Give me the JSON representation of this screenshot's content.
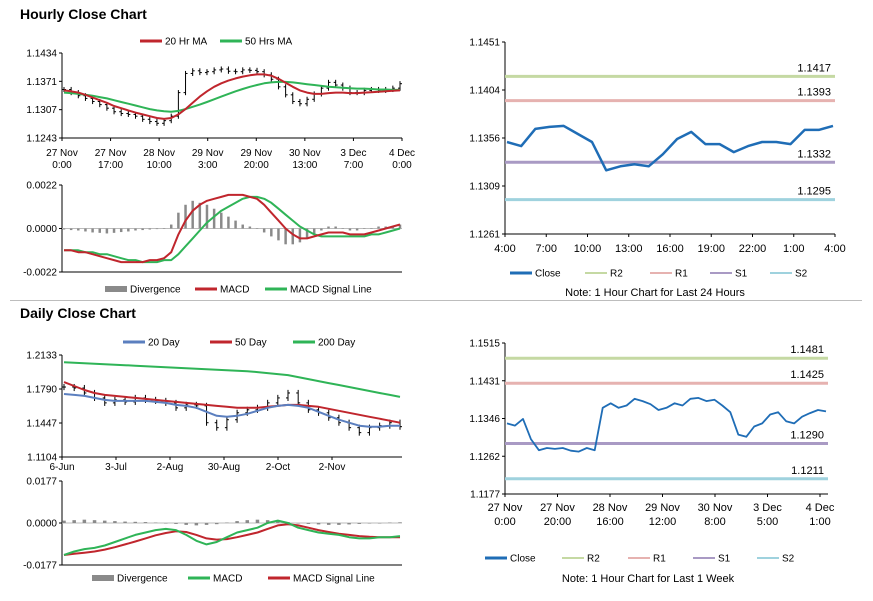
{
  "colors": {
    "ma20": "#c0262d",
    "ma50": "#2fb457",
    "ma200": "#2fb457",
    "ma20_daily": "#5b7fbf",
    "ma50_daily": "#c0262d",
    "close": "#1f6db6",
    "r2": "#c5d9a3",
    "r1": "#e6b2b0",
    "s1": "#a99ac4",
    "s2": "#9fd2de",
    "divergence": "#8a8a8a",
    "macd_hourly": "#c0262d",
    "signal_hourly": "#2fb457",
    "macd_daily": "#2fb457",
    "signal_daily": "#c0262d"
  },
  "hourly": {
    "title": "Hourly Close Chart",
    "price_chart": {
      "legend": [
        "20 Hr MA",
        "50 Hrs MA"
      ],
      "y_ticks": [
        "1.1434",
        "1.1371",
        "1.1307",
        "1.1243"
      ],
      "x_ticks": [
        [
          "27 Nov",
          "0:00"
        ],
        [
          "27 Nov",
          "17:00"
        ],
        [
          "28 Nov",
          "10:00"
        ],
        [
          "29 Nov",
          "3:00"
        ],
        [
          "29 Nov",
          "20:00"
        ],
        [
          "30 Nov",
          "13:00"
        ],
        [
          "3 Dec",
          "7:00"
        ],
        [
          "4 Dec",
          "0:00"
        ]
      ]
    },
    "macd_chart": {
      "y_ticks": [
        "0.0022",
        "0.0000",
        "-0.0022"
      ],
      "legend": [
        "Divergence",
        "MACD",
        "MACD Signal Line"
      ]
    },
    "pivot_chart": {
      "y_ticks": [
        "1.1451",
        "1.1404",
        "1.1356",
        "1.1309",
        "1.1261"
      ],
      "x_ticks": [
        "4:00",
        "7:00",
        "10:00",
        "13:00",
        "16:00",
        "19:00",
        "22:00",
        "1:00",
        "4:00"
      ],
      "legend": [
        "Close",
        "R2",
        "R1",
        "S1",
        "S2"
      ],
      "note": "Note: 1 Hour Chart for Last 24 Hours"
    }
  },
  "daily": {
    "title": "Daily Close Chart",
    "price_chart": {
      "legend": [
        "20 Day",
        "50 Day",
        "200 Day"
      ],
      "y_ticks": [
        "1.2133",
        "1.1790",
        "1.1447",
        "1.1104"
      ],
      "x_ticks": [
        "6-Jun",
        "3-Jul",
        "2-Aug",
        "30-Aug",
        "2-Oct",
        "2-Nov"
      ]
    },
    "macd_chart": {
      "y_ticks": [
        "0.0177",
        "0.0000",
        "-0.0177"
      ],
      "legend": [
        "Divergence",
        "MACD",
        "MACD Signal Line"
      ]
    },
    "pivot_chart": {
      "y_ticks": [
        "1.1515",
        "1.1431",
        "1.1346",
        "1.1262",
        "1.1177"
      ],
      "x_ticks": [
        [
          "27 Nov",
          "0:00"
        ],
        [
          "27 Nov",
          "20:00"
        ],
        [
          "28 Nov",
          "16:00"
        ],
        [
          "29 Nov",
          "12:00"
        ],
        [
          "30 Nov",
          "8:00"
        ],
        [
          "3 Dec",
          "5:00"
        ],
        [
          "4 Dec",
          "1:00"
        ]
      ],
      "legend": [
        "Close",
        "R2",
        "R1",
        "S1",
        "S2"
      ],
      "note": "Note: 1 Hour Chart for Last 1 Week"
    }
  },
  "chart_data": [
    {
      "id": "hourly-price",
      "type": "line",
      "title": "Hourly Close Chart",
      "ylim": [
        1.1243,
        1.1434
      ],
      "series": [
        {
          "name": "Close",
          "type": "ohlc",
          "values": [
            1.1352,
            1.1345,
            1.1338,
            1.1332,
            1.1325,
            1.1318,
            1.131,
            1.1302,
            1.1298,
            1.1296,
            1.1292,
            1.1285,
            1.128,
            1.1276,
            1.1282,
            1.1292,
            1.1345,
            1.1388,
            1.1394,
            1.139,
            1.1392,
            1.1396,
            1.1398,
            1.1393,
            1.1392,
            1.1396,
            1.1395,
            1.1392,
            1.1385,
            1.1375,
            1.1358,
            1.134,
            1.1325,
            1.132,
            1.133,
            1.1342,
            1.1355,
            1.1368,
            1.1362,
            1.1355,
            1.1345,
            1.1345,
            1.135,
            1.1352,
            1.135,
            1.1352,
            1.1355,
            1.1365
          ]
        },
        {
          "name": "20 Hr MA",
          "values": [
            1.135,
            1.1348,
            1.1345,
            1.134,
            1.1334,
            1.1328,
            1.1322,
            1.1315,
            1.131,
            1.1305,
            1.13,
            1.1296,
            1.1292,
            1.1288,
            1.1286,
            1.1288,
            1.1296,
            1.1308,
            1.1322,
            1.1336,
            1.1348,
            1.1358,
            1.1366,
            1.1372,
            1.1377,
            1.1381,
            1.1384,
            1.1386,
            1.1386,
            1.1383,
            1.1376,
            1.1367,
            1.1358,
            1.135,
            1.1345,
            1.1342,
            1.1342,
            1.1344,
            1.1345,
            1.1345,
            1.1344,
            1.1344,
            1.1345,
            1.1346,
            1.1347,
            1.1348,
            1.1349,
            1.135
          ]
        },
        {
          "name": "50 Hrs MA",
          "values": [
            1.1345,
            1.1344,
            1.1342,
            1.134,
            1.1338,
            1.1335,
            1.1332,
            1.1328,
            1.1324,
            1.132,
            1.1316,
            1.1312,
            1.1308,
            1.1305,
            1.1303,
            1.1302,
            1.1304,
            1.1308,
            1.1313,
            1.1318,
            1.1324,
            1.133,
            1.1336,
            1.1342,
            1.1348,
            1.1353,
            1.1358,
            1.1362,
            1.1366,
            1.1368,
            1.1369,
            1.1369,
            1.1368,
            1.1366,
            1.1364,
            1.1362,
            1.136,
            1.1358,
            1.1357,
            1.1356,
            1.1355,
            1.1354,
            1.1354,
            1.1353,
            1.1352,
            1.1352,
            1.1351,
            1.1351
          ]
        }
      ]
    },
    {
      "id": "hourly-macd",
      "type": "line",
      "ylim": [
        -0.0022,
        0.0022
      ],
      "series": [
        {
          "name": "Divergence",
          "type": "bar",
          "values": [
            -5e-05,
            -8e-05,
            -0.0001,
            -0.00015,
            -0.0002,
            -0.00022,
            -0.00025,
            -0.00022,
            -0.00018,
            -0.00015,
            -0.0001,
            -8e-05,
            -5e-05,
            -3e-05,
            0.0,
            0.0002,
            0.0008,
            0.0012,
            0.0014,
            0.0013,
            0.0012,
            0.001,
            0.0008,
            0.0006,
            0.0004,
            0.0002,
            0.0001,
            0.0,
            -0.0002,
            -0.0004,
            -0.0006,
            -0.0008,
            -0.0008,
            -0.0007,
            -0.0005,
            -0.0003,
            -0.0001,
            0.0001,
            0.0001,
            0.0,
            -0.0001,
            -0.0001,
            0.0,
            0.0,
            0.0001,
            0.0001,
            0.0001,
            0.0002
          ]
        },
        {
          "name": "MACD",
          "values": [
            -0.0011,
            -0.0011,
            -0.0012,
            -0.0012,
            -0.0013,
            -0.0014,
            -0.0015,
            -0.0016,
            -0.0017,
            -0.0017,
            -0.0017,
            -0.0017,
            -0.0016,
            -0.0016,
            -0.0015,
            -0.0012,
            -0.0003,
            0.0004,
            0.0009,
            0.0012,
            0.0014,
            0.0015,
            0.0016,
            0.0017,
            0.0017,
            0.0017,
            0.0016,
            0.0015,
            0.0012,
            0.0008,
            0.0004,
            0.0,
            -0.0003,
            -0.0005,
            -0.0005,
            -0.0004,
            -0.0003,
            -0.0002,
            -0.0002,
            -0.0002,
            -0.0003,
            -0.0003,
            -0.0003,
            -0.0002,
            -0.0001,
            0.0,
            0.0001,
            0.0002
          ]
        },
        {
          "name": "MACD Signal Line",
          "values": [
            -0.0011,
            -0.0011,
            -0.0011,
            -0.0012,
            -0.0012,
            -0.0013,
            -0.0013,
            -0.0014,
            -0.0015,
            -0.0016,
            -0.0016,
            -0.0017,
            -0.0017,
            -0.0017,
            -0.0016,
            -0.0016,
            -0.0013,
            -0.0009,
            -0.0005,
            -0.0001,
            0.0003,
            0.0006,
            0.0009,
            0.0011,
            0.0013,
            0.0015,
            0.0016,
            0.0016,
            0.0015,
            0.0013,
            0.001,
            0.0007,
            0.0004,
            0.0001,
            -0.0001,
            -0.0003,
            -0.0004,
            -0.0004,
            -0.0004,
            -0.0004,
            -0.0004,
            -0.0004,
            -0.0004,
            -0.0003,
            -0.0003,
            -0.0002,
            -0.0001,
            0.0
          ]
        }
      ]
    },
    {
      "id": "hourly-pivot",
      "type": "line",
      "ylim": [
        1.1261,
        1.1451
      ],
      "series": [
        {
          "name": "Close",
          "values": [
            1.1352,
            1.1348,
            1.1365,
            1.1367,
            1.1368,
            1.136,
            1.1352,
            1.1324,
            1.1328,
            1.133,
            1.1328,
            1.134,
            1.1355,
            1.1362,
            1.135,
            1.135,
            1.1342,
            1.1348,
            1.1352,
            1.1352,
            1.135,
            1.1364,
            1.1364,
            1.1368
          ]
        },
        {
          "name": "R2",
          "values": [
            1.1417
          ]
        },
        {
          "name": "R1",
          "values": [
            1.1393
          ]
        },
        {
          "name": "S1",
          "values": [
            1.1332
          ]
        },
        {
          "name": "S2",
          "values": [
            1.1295
          ]
        }
      ]
    },
    {
      "id": "daily-price",
      "type": "line",
      "title": "Daily Close Chart",
      "ylim": [
        1.1104,
        1.2133
      ],
      "series": [
        {
          "name": "Close",
          "type": "ohlc",
          "values": [
            1.181,
            1.18,
            1.175,
            1.17,
            1.165,
            1.168,
            1.166,
            1.17,
            1.168,
            1.167,
            1.165,
            1.16,
            1.163,
            1.162,
            1.145,
            1.14,
            1.148,
            1.155,
            1.158,
            1.16,
            1.165,
            1.17,
            1.175,
            1.165,
            1.158,
            1.155,
            1.15,
            1.145,
            1.14,
            1.135,
            1.14,
            1.142,
            1.145,
            1.141
          ]
        },
        {
          "name": "20 Day",
          "values": [
            1.174,
            1.173,
            1.172,
            1.17,
            1.168,
            1.167,
            1.167,
            1.167,
            1.167,
            1.166,
            1.165,
            1.163,
            1.162,
            1.16,
            1.156,
            1.152,
            1.151,
            1.152,
            1.154,
            1.157,
            1.16,
            1.162,
            1.163,
            1.162,
            1.16,
            1.156,
            1.152,
            1.148,
            1.145,
            1.142,
            1.141,
            1.141,
            1.142,
            1.142
          ]
        },
        {
          "name": "50 Day",
          "values": [
            1.186,
            1.182,
            1.178,
            1.175,
            1.173,
            1.172,
            1.171,
            1.17,
            1.169,
            1.168,
            1.167,
            1.166,
            1.165,
            1.164,
            1.163,
            1.162,
            1.161,
            1.16,
            1.16,
            1.16,
            1.161,
            1.162,
            1.163,
            1.163,
            1.162,
            1.161,
            1.159,
            1.157,
            1.155,
            1.153,
            1.151,
            1.149,
            1.147,
            1.145
          ]
        },
        {
          "name": "200 Day",
          "values": [
            1.206,
            1.2055,
            1.205,
            1.2045,
            1.204,
            1.2035,
            1.203,
            1.2025,
            1.202,
            1.2015,
            1.201,
            1.2005,
            1.2,
            1.1995,
            1.199,
            1.1985,
            1.198,
            1.1975,
            1.197,
            1.196,
            1.195,
            1.194,
            1.193,
            1.191,
            1.189,
            1.187,
            1.185,
            1.183,
            1.181,
            1.179,
            1.177,
            1.175,
            1.173,
            1.171
          ]
        }
      ]
    },
    {
      "id": "daily-macd",
      "type": "line",
      "ylim": [
        -0.0177,
        0.0177
      ],
      "series": [
        {
          "name": "Divergence",
          "type": "bar",
          "values": [
            0.001,
            0.0012,
            0.0014,
            0.0012,
            0.001,
            0.0008,
            0.0006,
            0.0005,
            0.0004,
            0.0002,
            0.0,
            -0.0004,
            -0.0008,
            -0.001,
            -0.0008,
            -0.0005,
            0.0002,
            0.0008,
            0.0012,
            0.0014,
            0.0012,
            0.0008,
            0.0004,
            0.0,
            -0.0004,
            -0.0006,
            -0.0008,
            -0.0008,
            -0.0006,
            -0.0004,
            -0.0002,
            0.0,
            0.0002,
            0.0003
          ]
        },
        {
          "name": "MACD",
          "values": [
            -0.0135,
            -0.012,
            -0.011,
            -0.0105,
            -0.0095,
            -0.008,
            -0.0065,
            -0.005,
            -0.004,
            -0.003,
            -0.0025,
            -0.003,
            -0.005,
            -0.0075,
            -0.009,
            -0.008,
            -0.006,
            -0.004,
            -0.003,
            -0.002,
            0.0,
            0.001,
            0.0,
            -0.002,
            -0.003,
            -0.004,
            -0.0045,
            -0.005,
            -0.006,
            -0.0065,
            -0.0065,
            -0.006,
            -0.006,
            -0.0055
          ]
        },
        {
          "name": "MACD Signal Line",
          "values": [
            -0.0135,
            -0.013,
            -0.0125,
            -0.012,
            -0.0112,
            -0.0102,
            -0.009,
            -0.0078,
            -0.0065,
            -0.0052,
            -0.0042,
            -0.0035,
            -0.0038,
            -0.005,
            -0.0065,
            -0.007,
            -0.0068,
            -0.006,
            -0.005,
            -0.004,
            -0.0025,
            -0.001,
            -0.0005,
            -0.001,
            -0.002,
            -0.003,
            -0.0038,
            -0.0045,
            -0.005,
            -0.0055,
            -0.0058,
            -0.006,
            -0.006,
            -0.006
          ]
        }
      ]
    },
    {
      "id": "daily-pivot",
      "type": "line",
      "ylim": [
        1.1177,
        1.1515
      ],
      "series": [
        {
          "name": "Close",
          "values": [
            1.1335,
            1.133,
            1.1345,
            1.13,
            1.1275,
            1.128,
            1.1278,
            1.128,
            1.1274,
            1.1272,
            1.128,
            1.1275,
            1.137,
            1.138,
            1.137,
            1.1375,
            1.139,
            1.1385,
            1.1378,
            1.1365,
            1.137,
            1.138,
            1.1375,
            1.139,
            1.1392,
            1.1385,
            1.1388,
            1.1375,
            1.136,
            1.131,
            1.1305,
            1.1328,
            1.1335,
            1.1355,
            1.136,
            1.134,
            1.1335,
            1.135,
            1.1358,
            1.1365,
            1.1362
          ]
        },
        {
          "name": "R2",
          "values": [
            1.1481
          ]
        },
        {
          "name": "R1",
          "values": [
            1.1425
          ]
        },
        {
          "name": "S1",
          "values": [
            1.129
          ]
        },
        {
          "name": "S2",
          "values": [
            1.1211
          ]
        }
      ]
    }
  ]
}
